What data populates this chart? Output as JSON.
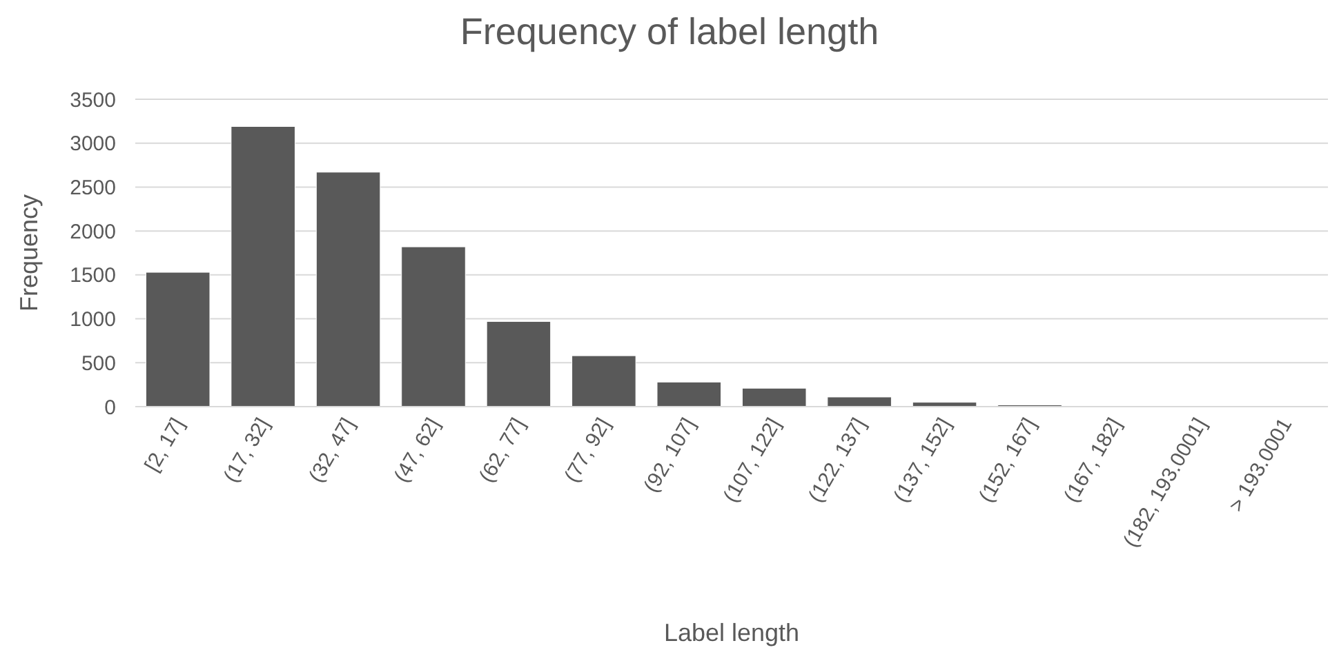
{
  "chart_data": {
    "type": "bar",
    "title": "Frequency of label length",
    "xlabel": "Label length",
    "ylabel": "Frequency",
    "categories": [
      "[2, 17]",
      "(17, 32]",
      "(32, 47]",
      "(47, 62]",
      "(62, 77]",
      "(77, 92]",
      "(92, 107]",
      "(107, 122]",
      "(122, 137]",
      "(137, 152]",
      "(152, 167]",
      "(167, 182]",
      "(182, 193.0001]",
      "> 193.0001"
    ],
    "values": [
      1530,
      3190,
      2670,
      1820,
      970,
      580,
      280,
      210,
      110,
      50,
      20,
      0,
      0,
      0
    ],
    "color": "#595959",
    "ylim": [
      0,
      3500
    ],
    "yticks": [
      0,
      500,
      1000,
      1500,
      2000,
      2500,
      3000,
      3500
    ],
    "grid": "y"
  }
}
